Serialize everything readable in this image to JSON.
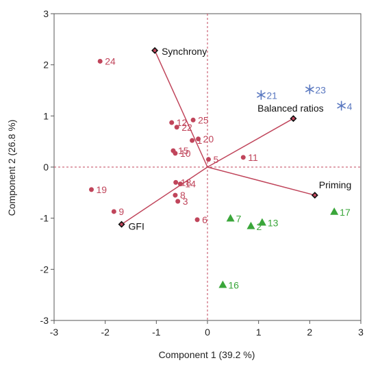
{
  "chart_data": {
    "type": "scatter",
    "title": "",
    "xlabel": "Component 1  (39.2 %)",
    "ylabel": "Component 2  (26.8 %)",
    "xlim": [
      -3,
      3
    ],
    "ylim": [
      -3,
      3
    ],
    "x_ticks": [
      -3,
      -2,
      -1,
      0,
      1,
      2,
      3
    ],
    "y_ticks": [
      -3,
      -2,
      -1,
      0,
      1,
      2,
      3
    ],
    "grid": false,
    "reference_lines": {
      "x": 0,
      "y": 0
    },
    "colors": {
      "circle": "#c0455b",
      "triangle": "#3aa63a",
      "star": "#5a78c0",
      "vector": "#c0455b",
      "vector_end": "#111111",
      "axis": "#555555"
    },
    "vectors": [
      {
        "label": "Synchrony",
        "x": -1.03,
        "y": 2.28
      },
      {
        "label": "Balanced ratios",
        "x": 1.68,
        "y": 0.95
      },
      {
        "label": "Priming",
        "x": 2.1,
        "y": -0.55
      },
      {
        "label": "GFI",
        "x": -1.68,
        "y": -1.12
      }
    ],
    "series": [
      {
        "marker": "circle",
        "points": [
          {
            "label": "24",
            "x": -2.1,
            "y": 2.07
          },
          {
            "label": "12",
            "x": -0.7,
            "y": 0.87
          },
          {
            "label": "22",
            "x": -0.6,
            "y": 0.78
          },
          {
            "label": "25",
            "x": -0.28,
            "y": 0.92
          },
          {
            "label": "1",
            "x": -0.3,
            "y": 0.52
          },
          {
            "label": "20",
            "x": -0.18,
            "y": 0.55
          },
          {
            "label": "15",
            "x": -0.67,
            "y": 0.32
          },
          {
            "label": "10",
            "x": -0.63,
            "y": 0.27
          },
          {
            "label": "5",
            "x": 0.02,
            "y": 0.15
          },
          {
            "label": "11",
            "x": 0.7,
            "y": 0.19
          },
          {
            "label": "18",
            "x": -0.62,
            "y": -0.3
          },
          {
            "label": "14",
            "x": -0.53,
            "y": -0.33
          },
          {
            "label": "19",
            "x": -2.27,
            "y": -0.44
          },
          {
            "label": "8",
            "x": -0.63,
            "y": -0.55
          },
          {
            "label": "3",
            "x": -0.58,
            "y": -0.67
          },
          {
            "label": "9",
            "x": -1.83,
            "y": -0.87
          },
          {
            "label": "6",
            "x": -0.2,
            "y": -1.03
          }
        ]
      },
      {
        "marker": "triangle",
        "points": [
          {
            "label": "7",
            "x": 0.45,
            "y": -1.0
          },
          {
            "label": "13",
            "x": 1.07,
            "y": -1.08
          },
          {
            "label": "2",
            "x": 0.85,
            "y": -1.15
          },
          {
            "label": "17",
            "x": 2.48,
            "y": -0.87
          },
          {
            "label": "16",
            "x": 0.3,
            "y": -2.3
          }
        ]
      },
      {
        "marker": "star",
        "points": [
          {
            "label": "21",
            "x": 1.05,
            "y": 1.41
          },
          {
            "label": "23",
            "x": 2.0,
            "y": 1.52
          },
          {
            "label": "4",
            "x": 2.62,
            "y": 1.2
          }
        ]
      }
    ]
  }
}
